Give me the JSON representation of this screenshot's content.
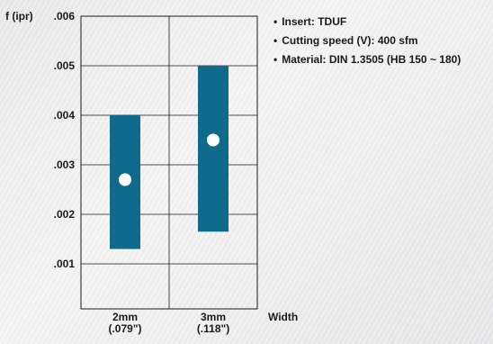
{
  "chart_data": {
    "type": "range-bar",
    "ylabel": "f (ipr)",
    "xlabel": "Width",
    "ylim": [
      0,
      0.006
    ],
    "yticks": [
      ".001",
      ".002",
      ".003",
      ".004",
      ".005",
      ".006"
    ],
    "categories": [
      {
        "name": "2mm",
        "sub": "(.079\")"
      },
      {
        "name": "3mm",
        "sub": "(.118\")"
      }
    ],
    "ranges": [
      {
        "low": 0.0013,
        "high": 0.004,
        "point": 0.0027
      },
      {
        "low": 0.00165,
        "high": 0.005,
        "point": 0.0035
      }
    ],
    "grid": true,
    "colors": {
      "bar": "#0f6a8c",
      "point": "#ffffff",
      "grid": "#1a1a1a"
    }
  },
  "legend": [
    "Insert: TDUF",
    "Cutting speed (V): 400 sfm",
    "Material: DIN 1.3505 (HB 150 ~ 180)"
  ]
}
